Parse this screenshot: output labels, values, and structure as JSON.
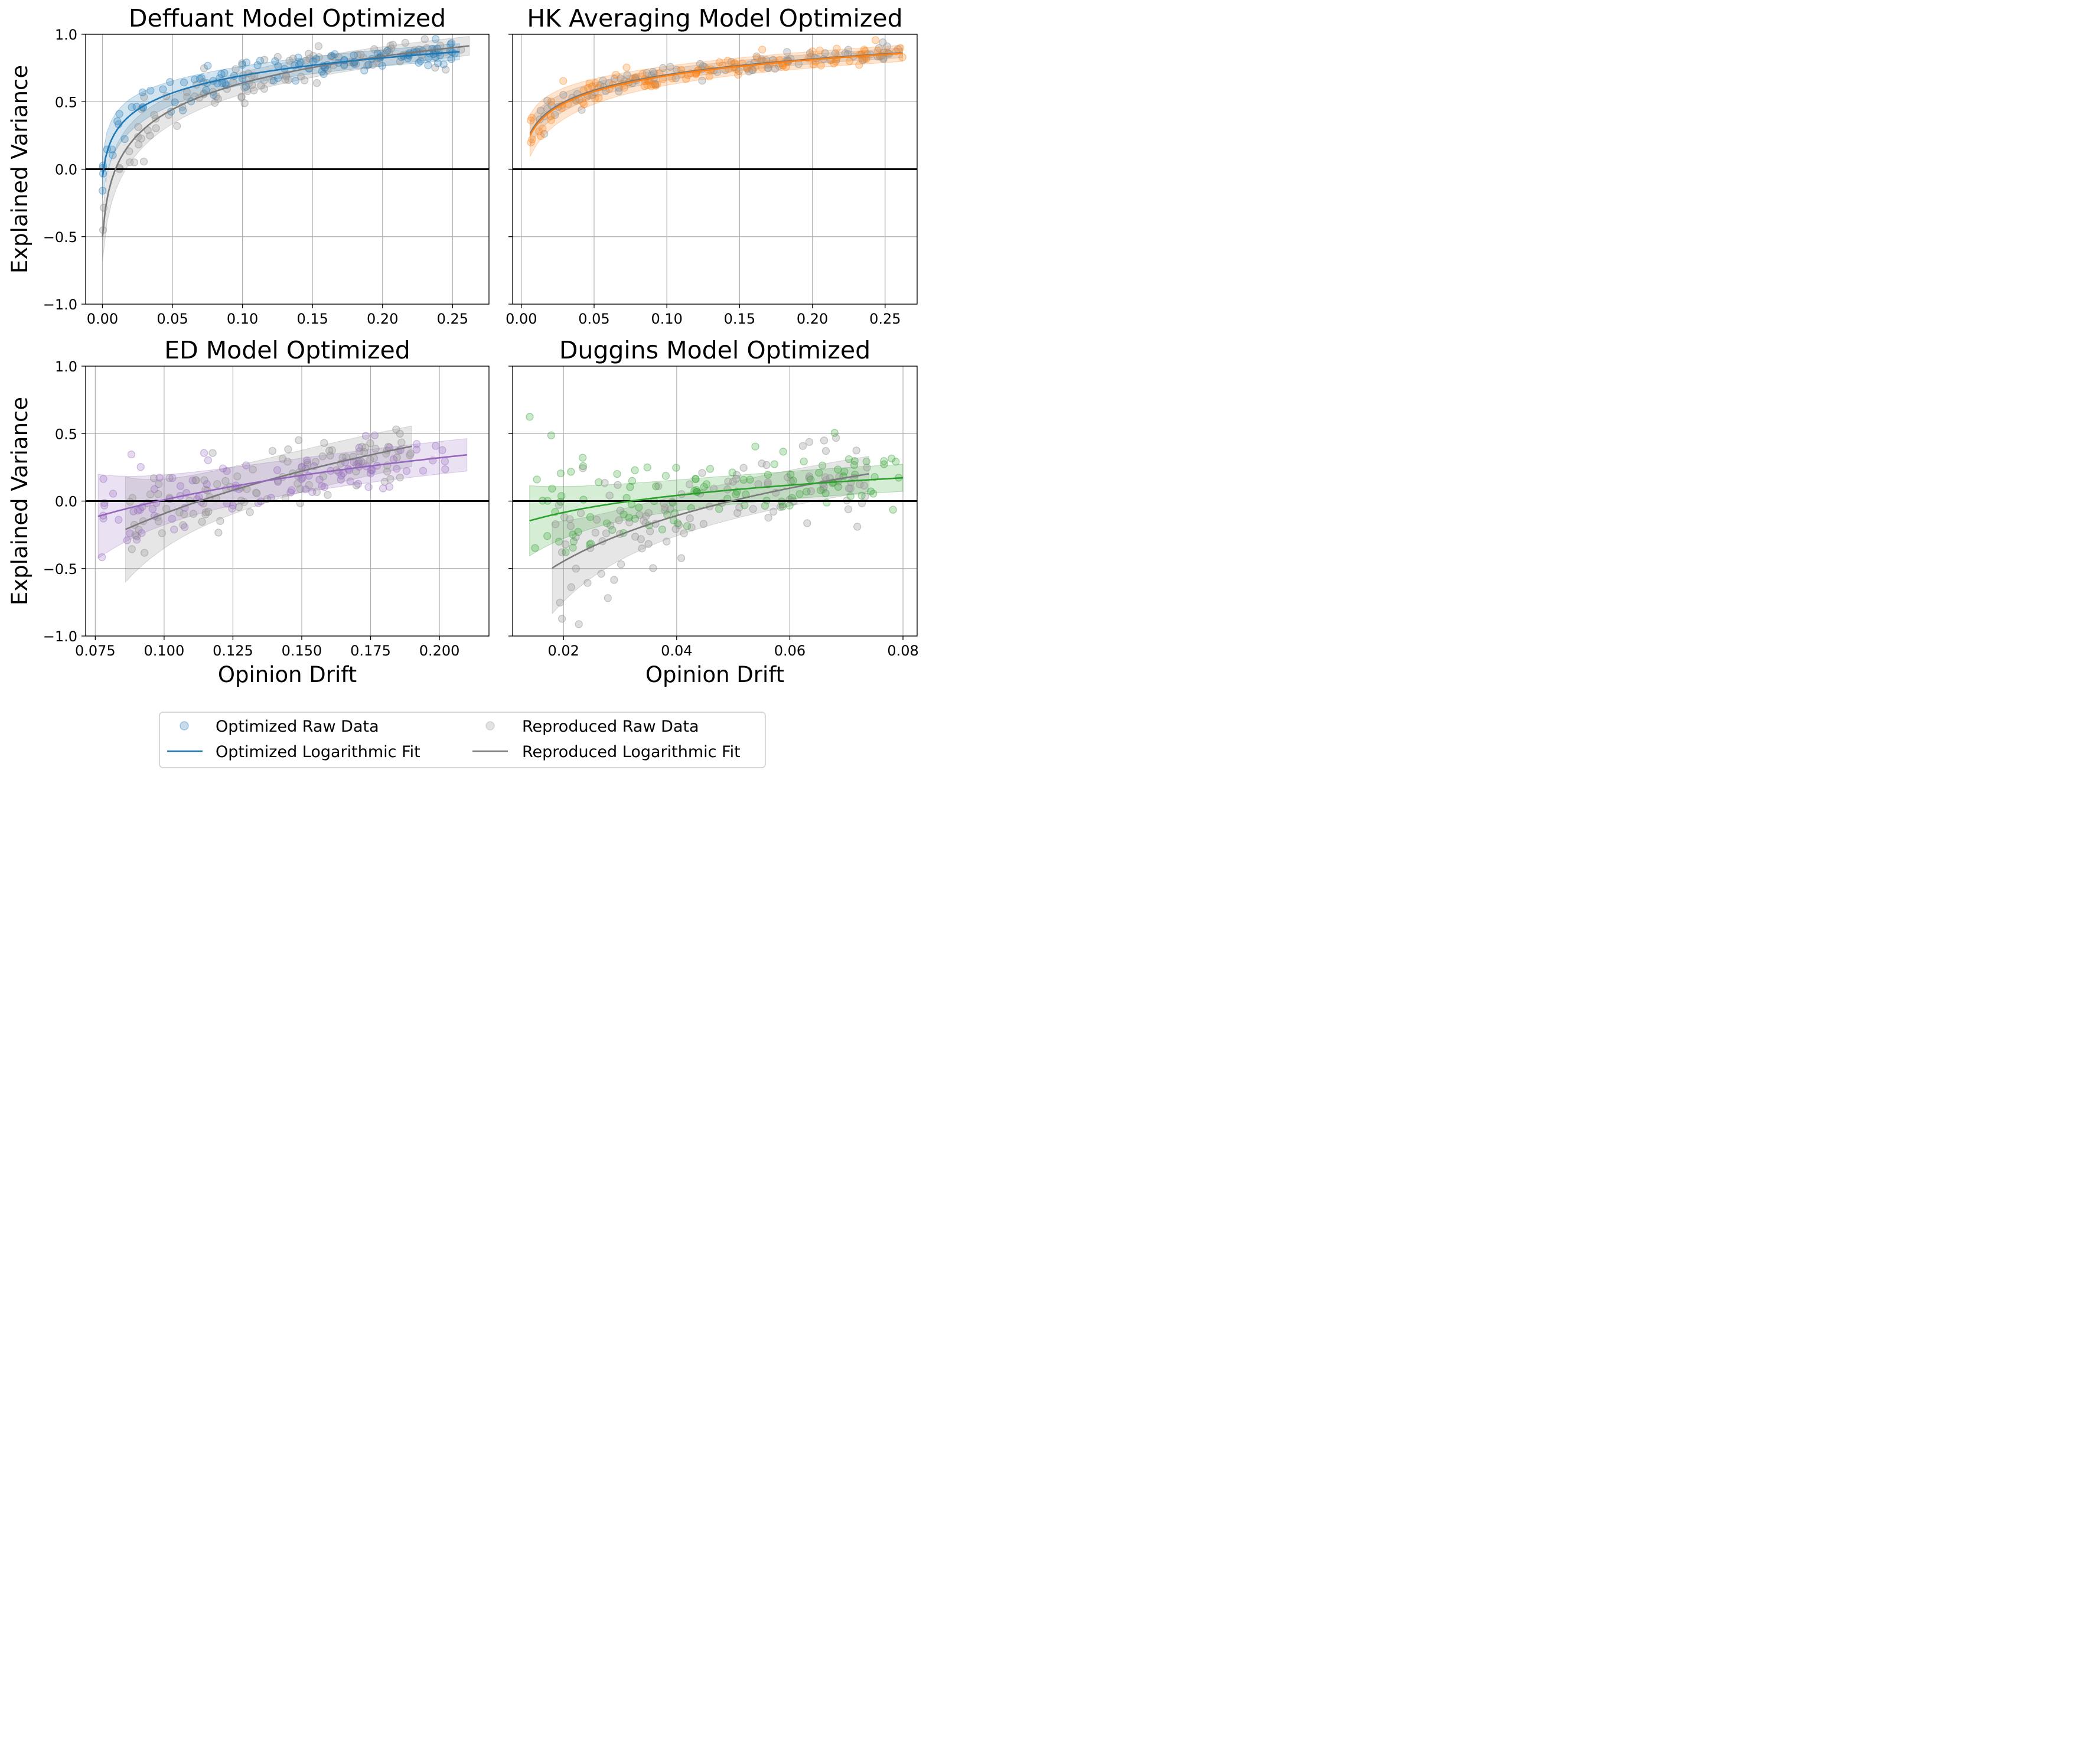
{
  "legend": {
    "entries": [
      {
        "label": "Optimized Raw Data",
        "kind": "marker",
        "color": "#1f77b4"
      },
      {
        "label": "Optimized Logarithmic Fit",
        "kind": "line",
        "color": "#1f77b4"
      },
      {
        "label": "Reproduced Raw Data",
        "kind": "marker",
        "color": "#bfbfbf"
      },
      {
        "label": "Reproduced Logarithmic Fit",
        "kind": "line",
        "color": "#7f7f7f"
      }
    ]
  },
  "chart_data": [
    {
      "type": "scatter",
      "title": "Deffuant Model Optimized",
      "ylabel": "Explained Variance",
      "xlabel": "",
      "xlim": [
        -0.012,
        0.276
      ],
      "ylim": [
        -1.0,
        1.0
      ],
      "xticks": [
        "0.00",
        "0.05",
        "0.10",
        "0.15",
        "0.20",
        "0.25"
      ],
      "yticks": [
        "1.0",
        "0.5",
        "0.0",
        "−0.5",
        "−1.0"
      ],
      "show_xtick_labels": true,
      "show_ytick_labels": true,
      "grid": true,
      "hline": 0,
      "color": "#1f77b4",
      "optimized_fit": {
        "x_range": [
          0.0,
          0.255
        ],
        "a": 0.191,
        "b": 1.13,
        "band": 0.06
      },
      "reproduced_fit": {
        "x_range": [
          0.0,
          0.262
        ],
        "a": 0.29,
        "b": 1.3,
        "band": 0.07
      },
      "optimized_raw": {
        "x_range": [
          0.0,
          0.255
        ],
        "n": 110,
        "noise": 0.05
      },
      "reproduced_raw": {
        "x_range": [
          0.0,
          0.262
        ],
        "n": 120,
        "noise": 0.06
      }
    },
    {
      "type": "scatter",
      "title": "HK Averaging Model Optimized",
      "ylabel": "",
      "xlabel": "",
      "xlim": [
        -0.006,
        0.272
      ],
      "ylim": [
        -1.0,
        1.0
      ],
      "xticks": [
        "0.00",
        "0.05",
        "0.10",
        "0.15",
        "0.20",
        "0.25"
      ],
      "yticks": [
        "1.0",
        "0.5",
        "0.0",
        "−0.5",
        "−1.0"
      ],
      "show_xtick_labels": true,
      "show_ytick_labels": false,
      "grid": true,
      "hline": 0,
      "color": "#ff7f0e",
      "optimized_fit": {
        "x_range": [
          0.006,
          0.262
        ],
        "a": 0.174,
        "b": 1.09,
        "band": 0.06
      },
      "reproduced_fit": {
        "x_range": [
          0.006,
          0.262
        ],
        "a": 0.171,
        "b": 1.09,
        "band": 0.035
      },
      "optimized_raw": {
        "x_range": [
          0.006,
          0.262
        ],
        "n": 115,
        "noise": 0.035
      },
      "reproduced_raw": {
        "x_range": [
          0.008,
          0.262
        ],
        "n": 110,
        "noise": 0.03
      }
    },
    {
      "type": "scatter",
      "title": "ED Model Optimized",
      "ylabel": "Explained Variance",
      "xlabel": "Opinion Drift",
      "xlim": [
        0.0715,
        0.218
      ],
      "ylim": [
        -1.0,
        1.0
      ],
      "xticks": [
        "0.075",
        "0.100",
        "0.125",
        "0.150",
        "0.175",
        "0.200"
      ],
      "yticks": [
        "1.0",
        "0.5",
        "0.0",
        "−0.5",
        "−1.0"
      ],
      "show_xtick_labels": true,
      "show_ytick_labels": true,
      "grid": true,
      "hline": 0,
      "color": "#9467bd",
      "optimized_fit": {
        "x_range": [
          0.076,
          0.21
        ],
        "a": 0.456,
        "b": 1.05,
        "band": 0.12
      },
      "reproduced_fit": {
        "x_range": [
          0.086,
          0.19
        ],
        "a": 0.79,
        "b": 1.71,
        "band": 0.15
      },
      "optimized_raw": {
        "x_range": [
          0.076,
          0.21
        ],
        "n": 105,
        "noise": 0.09
      },
      "reproduced_raw": {
        "x_range": [
          0.086,
          0.19
        ],
        "n": 115,
        "noise": 0.1
      }
    },
    {
      "type": "scatter",
      "title": "Duggins Model Optimized",
      "ylabel": "",
      "xlabel": "Opinion Drift",
      "xlim": [
        0.011,
        0.0825
      ],
      "ylim": [
        -1.0,
        1.0
      ],
      "xticks": [
        "0.02",
        "0.04",
        "0.06",
        "0.08"
      ],
      "yticks": [
        "1.0",
        "0.5",
        "0.0",
        "−0.5",
        "−1.0"
      ],
      "show_xtick_labels": true,
      "show_ytick_labels": false,
      "grid": true,
      "hline": 0,
      "color": "#2ca02c",
      "optimized_fit": {
        "x_range": [
          0.014,
          0.08
        ],
        "a": 0.195,
        "b": 0.66,
        "band": 0.1
      },
      "reproduced_fit": {
        "x_range": [
          0.018,
          0.074
        ],
        "a": 0.523,
        "b": 1.55,
        "band": 0.13
      },
      "optimized_raw": {
        "x_range": [
          0.014,
          0.08
        ],
        "n": 115,
        "noise": 0.12
      },
      "reproduced_raw": {
        "x_range": [
          0.018,
          0.074
        ],
        "n": 120,
        "noise": 0.14
      }
    }
  ]
}
